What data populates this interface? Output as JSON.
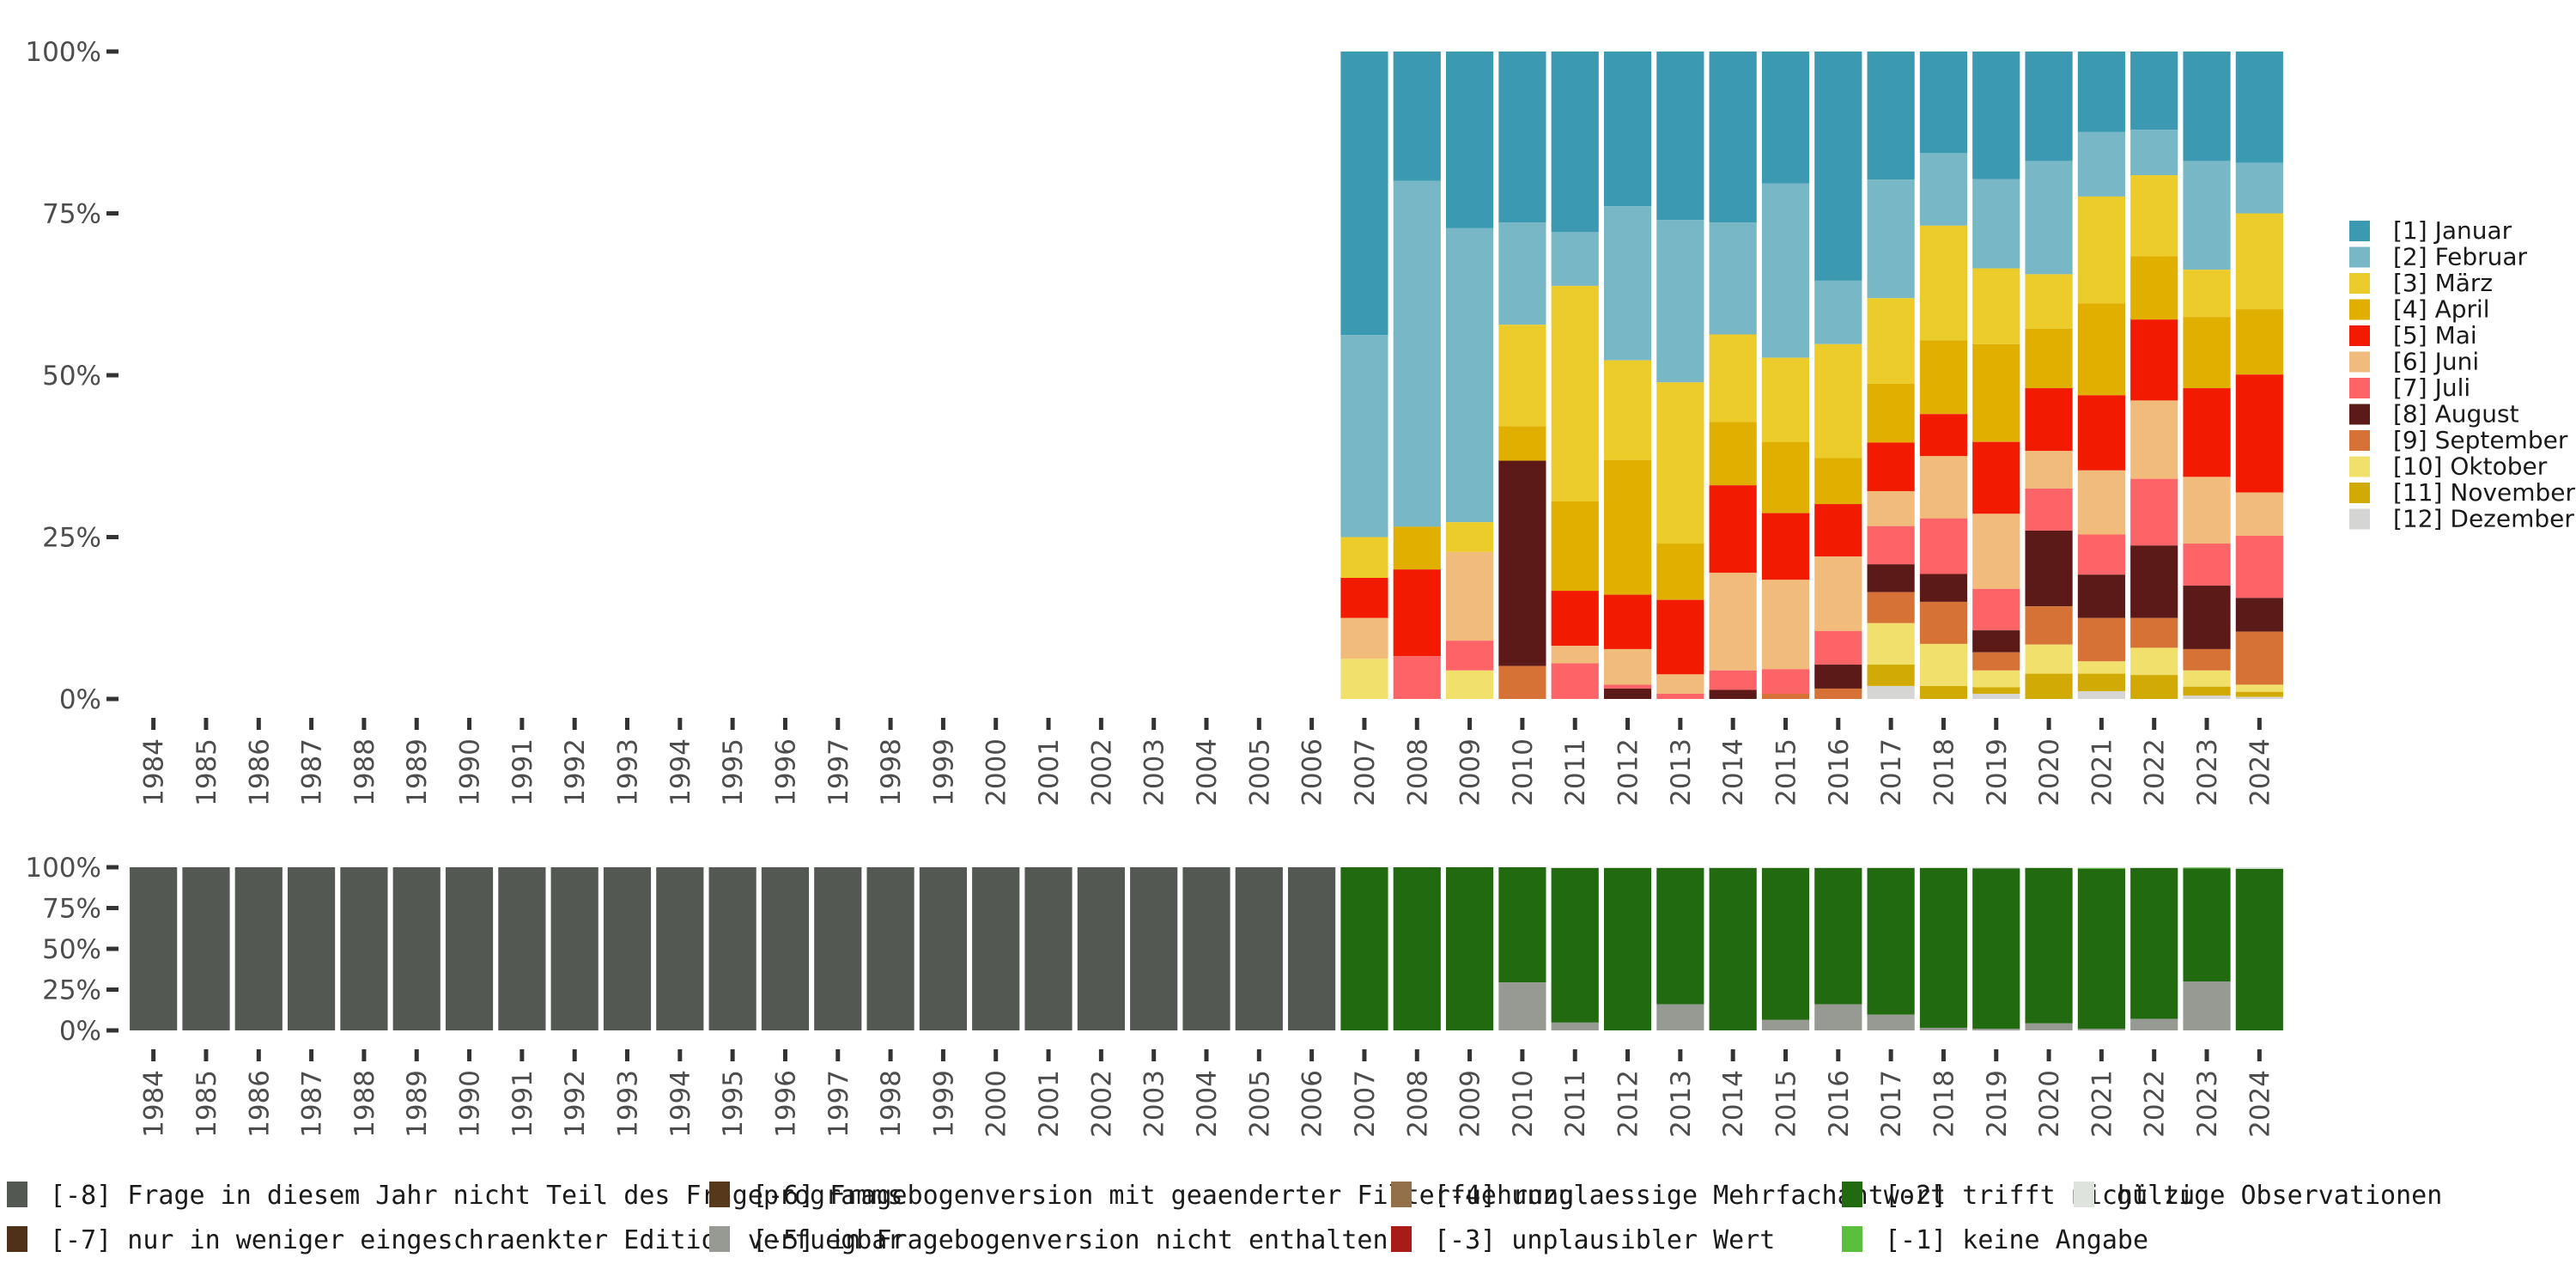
{
  "chart_data": [
    {
      "type": "bar",
      "stacked": true,
      "normalized": true,
      "panel": "top",
      "title": "",
      "xlabel": "",
      "ylabel": "",
      "ylim": [
        0,
        100
      ],
      "yticks": [
        "0%",
        "25%",
        "50%",
        "75%",
        "100%"
      ],
      "categories": [
        "1984",
        "1985",
        "1986",
        "1987",
        "1988",
        "1989",
        "1990",
        "1991",
        "1992",
        "1993",
        "1994",
        "1995",
        "1996",
        "1997",
        "1998",
        "1999",
        "2000",
        "2001",
        "2002",
        "2003",
        "2004",
        "2005",
        "2006",
        "2007",
        "2008",
        "2009",
        "2010",
        "2011",
        "2012",
        "2013",
        "2014",
        "2015",
        "2016",
        "2017",
        "2018",
        "2019",
        "2020",
        "2021",
        "2022",
        "2023",
        "2024"
      ],
      "legend_position": "right",
      "series": [
        {
          "name": "[1] Januar",
          "color": "#3C99B2",
          "values": [
            null,
            null,
            null,
            null,
            null,
            null,
            null,
            null,
            null,
            null,
            null,
            null,
            null,
            null,
            null,
            null,
            null,
            null,
            null,
            null,
            null,
            null,
            null,
            43.8,
            20.0,
            27.3,
            26.4,
            27.9,
            23.9,
            26.0,
            26.4,
            20.4,
            35.4,
            19.8,
            15.7,
            19.7,
            16.9,
            12.4,
            12.1,
            16.9,
            17.2
          ]
        },
        {
          "name": "[2] Februar",
          "color": "#78B7C5",
          "values": [
            null,
            null,
            null,
            null,
            null,
            null,
            null,
            null,
            null,
            null,
            null,
            null,
            null,
            null,
            null,
            null,
            null,
            null,
            null,
            null,
            null,
            null,
            null,
            31.2,
            53.4,
            45.4,
            15.8,
            8.3,
            23.8,
            25.1,
            17.3,
            26.9,
            9.8,
            18.3,
            11.2,
            13.8,
            17.5,
            10.0,
            7.0,
            16.8,
            7.8
          ]
        },
        {
          "name": "[3] März",
          "color": "#EBCC2A",
          "values": [
            null,
            null,
            null,
            null,
            null,
            null,
            null,
            null,
            null,
            null,
            null,
            null,
            null,
            null,
            null,
            null,
            null,
            null,
            null,
            null,
            null,
            null,
            null,
            6.3,
            0,
            4.6,
            15.7,
            33.3,
            15.4,
            24.9,
            13.5,
            13.0,
            17.6,
            13.2,
            17.7,
            11.7,
            8.4,
            16.5,
            12.5,
            7.3,
            14.8
          ]
        },
        {
          "name": "[4] April",
          "color": "#E1AF00",
          "values": [
            null,
            null,
            null,
            null,
            null,
            null,
            null,
            null,
            null,
            null,
            null,
            null,
            null,
            null,
            null,
            null,
            null,
            null,
            null,
            null,
            null,
            null,
            null,
            0,
            6.6,
            0,
            5.3,
            13.8,
            20.8,
            8.7,
            9.8,
            11.0,
            7.1,
            9.1,
            11.4,
            15.1,
            9.2,
            14.2,
            9.8,
            11.0,
            10.1
          ]
        },
        {
          "name": "[5] Mai",
          "color": "#F21A00",
          "values": [
            null,
            null,
            null,
            null,
            null,
            null,
            null,
            null,
            null,
            null,
            null,
            null,
            null,
            null,
            null,
            null,
            null,
            null,
            null,
            null,
            null,
            null,
            null,
            6.2,
            13.4,
            0,
            0,
            8.5,
            8.4,
            11.5,
            13.5,
            10.3,
            8.1,
            7.5,
            6.5,
            11.1,
            9.7,
            11.6,
            12.5,
            13.7,
            18.2
          ]
        },
        {
          "name": "[6] Juni",
          "color": "#F1BB7B",
          "values": [
            null,
            null,
            null,
            null,
            null,
            null,
            null,
            null,
            null,
            null,
            null,
            null,
            null,
            null,
            null,
            null,
            null,
            null,
            null,
            null,
            null,
            null,
            null,
            6.3,
            0,
            13.7,
            0,
            2.7,
            5.5,
            3.0,
            15.1,
            13.8,
            11.5,
            5.4,
            9.6,
            11.6,
            5.8,
            9.9,
            12.1,
            10.3,
            6.7
          ]
        },
        {
          "name": "[7] Juli",
          "color": "#FD6467",
          "values": [
            null,
            null,
            null,
            null,
            null,
            null,
            null,
            null,
            null,
            null,
            null,
            null,
            null,
            null,
            null,
            null,
            null,
            null,
            null,
            null,
            null,
            null,
            null,
            0,
            6.6,
            4.6,
            0,
            5.5,
            0.6,
            0.8,
            3.0,
            3.8,
            5.2,
            5.9,
            8.6,
            6.4,
            6.5,
            6.2,
            10.3,
            6.5,
            9.6
          ]
        },
        {
          "name": "[8] August",
          "color": "#5B1A18",
          "values": [
            null,
            null,
            null,
            null,
            null,
            null,
            null,
            null,
            null,
            null,
            null,
            null,
            null,
            null,
            null,
            null,
            null,
            null,
            null,
            null,
            null,
            null,
            null,
            0,
            0,
            0,
            31.7,
            0,
            1.6,
            0,
            1.4,
            0,
            3.7,
            4.3,
            4.3,
            3.4,
            11.7,
            6.7,
            11.2,
            9.8,
            5.2
          ]
        },
        {
          "name": "[9] September",
          "color": "#D67236",
          "values": [
            null,
            null,
            null,
            null,
            null,
            null,
            null,
            null,
            null,
            null,
            null,
            null,
            null,
            null,
            null,
            null,
            null,
            null,
            null,
            null,
            null,
            null,
            null,
            0,
            0,
            0,
            5.1,
            0,
            0,
            0,
            0,
            0.8,
            1.6,
            4.8,
            6.5,
            2.8,
            5.9,
            6.7,
            4.6,
            3.3,
            8.2
          ]
        },
        {
          "name": "[10] Oktober",
          "color": "#F2E06C",
          "values": [
            null,
            null,
            null,
            null,
            null,
            null,
            null,
            null,
            null,
            null,
            null,
            null,
            null,
            null,
            null,
            null,
            null,
            null,
            null,
            null,
            null,
            null,
            null,
            6.2,
            0,
            4.4,
            0,
            0,
            0,
            0,
            0,
            0,
            0,
            6.4,
            6.5,
            2.6,
            4.5,
            1.9,
            4.2,
            2.5,
            1.1
          ]
        },
        {
          "name": "[11] November",
          "color": "#D2AA05",
          "values": [
            null,
            null,
            null,
            null,
            null,
            null,
            null,
            null,
            null,
            null,
            null,
            null,
            null,
            null,
            null,
            null,
            null,
            null,
            null,
            null,
            null,
            null,
            null,
            0,
            0,
            0,
            0,
            0,
            0,
            0,
            0,
            0,
            0,
            3.3,
            2.0,
            1.0,
            3.9,
            2.7,
            3.7,
            1.4,
            0.8
          ]
        },
        {
          "name": "[12] Dezember",
          "color": "#D5D5D3",
          "values": [
            null,
            null,
            null,
            null,
            null,
            null,
            null,
            null,
            null,
            null,
            null,
            null,
            null,
            null,
            null,
            null,
            null,
            null,
            null,
            null,
            null,
            null,
            null,
            0,
            0,
            0,
            0,
            0,
            0,
            0,
            0,
            0,
            0,
            2.0,
            0,
            0.8,
            0,
            1.2,
            0,
            0.5,
            0.3
          ]
        }
      ]
    },
    {
      "type": "bar",
      "stacked": true,
      "normalized": true,
      "panel": "bottom",
      "ylim": [
        0,
        100
      ],
      "yticks": [
        "0%",
        "25%",
        "50%",
        "75%",
        "100%"
      ],
      "categories": [
        "1984",
        "1985",
        "1986",
        "1987",
        "1988",
        "1989",
        "1990",
        "1991",
        "1992",
        "1993",
        "1994",
        "1995",
        "1996",
        "1997",
        "1998",
        "1999",
        "2000",
        "2001",
        "2002",
        "2003",
        "2004",
        "2005",
        "2006",
        "2007",
        "2008",
        "2009",
        "2010",
        "2011",
        "2012",
        "2013",
        "2014",
        "2015",
        "2016",
        "2017",
        "2018",
        "2019",
        "2020",
        "2021",
        "2022",
        "2023",
        "2024"
      ],
      "legend_position": "bottom",
      "series": [
        {
          "name": "[-8] Frage in diesem Jahr nicht Teil des Frageprogramms",
          "color": "#535852",
          "values": [
            100,
            100,
            100,
            100,
            100,
            100,
            100,
            100,
            100,
            100,
            100,
            100,
            100,
            100,
            100,
            100,
            100,
            100,
            100,
            100,
            100,
            100,
            100,
            0,
            0,
            0,
            0,
            0,
            0,
            0,
            0,
            0,
            0,
            0,
            0,
            0,
            0,
            0,
            0,
            0,
            0
          ]
        },
        {
          "name": "[-7] nur in weniger eingeschraenkter Edition verfuegbar",
          "color": "#4E3116",
          "values": [
            0,
            0,
            0,
            0,
            0,
            0,
            0,
            0,
            0,
            0,
            0,
            0,
            0,
            0,
            0,
            0,
            0,
            0,
            0,
            0,
            0,
            0,
            0,
            0,
            0,
            0,
            0,
            0,
            0,
            0,
            0,
            0,
            0,
            0,
            0,
            0,
            0,
            0,
            0,
            0,
            0
          ]
        },
        {
          "name": "[-6] Fragebogenversion mit geaenderter Filterfuehrung",
          "color": "#56381A",
          "values": [
            0,
            0,
            0,
            0,
            0,
            0,
            0,
            0,
            0,
            0,
            0,
            0,
            0,
            0,
            0,
            0,
            0,
            0,
            0,
            0,
            0,
            0,
            0,
            0,
            0,
            0,
            0,
            0,
            0,
            0,
            0,
            0,
            0,
            0,
            0,
            0,
            0,
            0,
            0,
            0,
            0
          ]
        },
        {
          "name": "[-5] in Fragebogenversion nicht enthalten",
          "color": "#969A93",
          "values": [
            0,
            0,
            0,
            0,
            0,
            0,
            0,
            0,
            0,
            0,
            0,
            0,
            0,
            0,
            0,
            0,
            0,
            0,
            0,
            0,
            0,
            0,
            0,
            0,
            0,
            0,
            29.4,
            4.8,
            0,
            16.0,
            0,
            6.4,
            16.0,
            9.6,
            1.6,
            1.0,
            4.3,
            1.0,
            7.0,
            30.0,
            0
          ]
        },
        {
          "name": "[-4] unzulaessige Mehrfachantwort",
          "color": "#94704A",
          "values": [
            0,
            0,
            0,
            0,
            0,
            0,
            0,
            0,
            0,
            0,
            0,
            0,
            0,
            0,
            0,
            0,
            0,
            0,
            0,
            0,
            0,
            0,
            0,
            0,
            0,
            0,
            0,
            0,
            0,
            0,
            0,
            0,
            0,
            0,
            0,
            0,
            0,
            0,
            0,
            0,
            0
          ]
        },
        {
          "name": "[-3] unplausibler Wert",
          "color": "#A91B16",
          "values": [
            0,
            0,
            0,
            0,
            0,
            0,
            0,
            0,
            0,
            0,
            0,
            0,
            0,
            0,
            0,
            0,
            0,
            0,
            0,
            0,
            0,
            0,
            0,
            0,
            0,
            0,
            0,
            0,
            0,
            0,
            0,
            0,
            0,
            0,
            0,
            0,
            0,
            0,
            0,
            0,
            0
          ]
        },
        {
          "name": "[-2] trifft nicht zu",
          "color": "#216A10",
          "values": [
            0,
            0,
            0,
            0,
            0,
            0,
            0,
            0,
            0,
            0,
            0,
            0,
            0,
            0,
            0,
            0,
            0,
            0,
            0,
            0,
            0,
            0,
            0,
            100,
            100,
            100,
            70.6,
            94.7,
            99.5,
            83.5,
            99.5,
            93.1,
            83.5,
            89.9,
            97.9,
            98.3,
            95.2,
            98.0,
            92.5,
            69.3,
            99.0
          ]
        },
        {
          "name": "[-1] keine Angabe",
          "color": "#5ABF3C",
          "values": [
            0,
            0,
            0,
            0,
            0,
            0,
            0,
            0,
            0,
            0,
            0,
            0,
            0,
            0,
            0,
            0,
            0,
            0,
            0,
            0,
            0,
            0,
            0,
            0,
            0,
            0,
            0,
            0,
            0,
            0,
            0,
            0,
            0,
            0,
            0,
            0,
            0,
            0.5,
            0,
            0.5,
            0
          ]
        },
        {
          "name": "gültige Observationen",
          "color": "#DFE3DE",
          "values": [
            0,
            0,
            0,
            0,
            0,
            0,
            0,
            0,
            0,
            0,
            0,
            0,
            0,
            0,
            0,
            0,
            0,
            0,
            0,
            0,
            0,
            0,
            0,
            0,
            0,
            0,
            0,
            0.5,
            0.5,
            0.5,
            0.5,
            0.5,
            0.5,
            0.5,
            0.5,
            0.7,
            0.5,
            0.5,
            0.5,
            0.2,
            1.0
          ]
        }
      ]
    }
  ]
}
